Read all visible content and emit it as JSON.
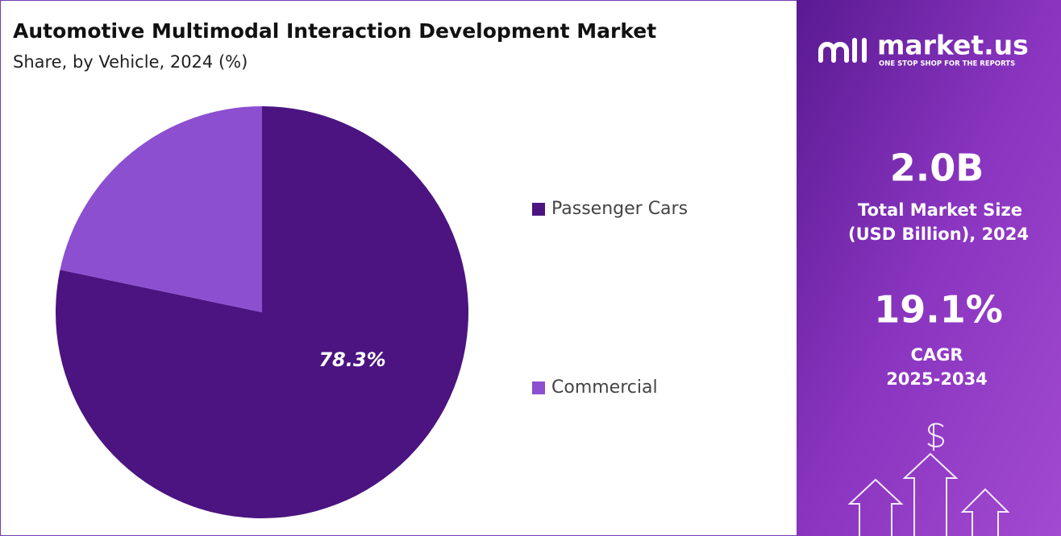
{
  "chart_data": {
    "type": "pie",
    "title": "Automotive Multimodal Interaction Development Market",
    "subtitle": "Share, by Vehicle, 2024 (%)",
    "categories": [
      "Passenger Cars",
      "Commercial"
    ],
    "values": [
      78.3,
      21.7
    ],
    "value_labels": [
      "78.3%",
      null
    ],
    "colors": [
      "#4b1480",
      "#8c4fd0"
    ],
    "legend": "right"
  },
  "panel": {
    "brand": "market.us",
    "tagline": "ONE STOP SHOP FOR THE REPORTS",
    "market_size": "2.0B",
    "market_size_label": [
      "Total Market Size",
      "(USD Billion), 2024"
    ],
    "cagr": "19.1%",
    "cagr_label": [
      "CAGR",
      "2025-2034"
    ]
  }
}
